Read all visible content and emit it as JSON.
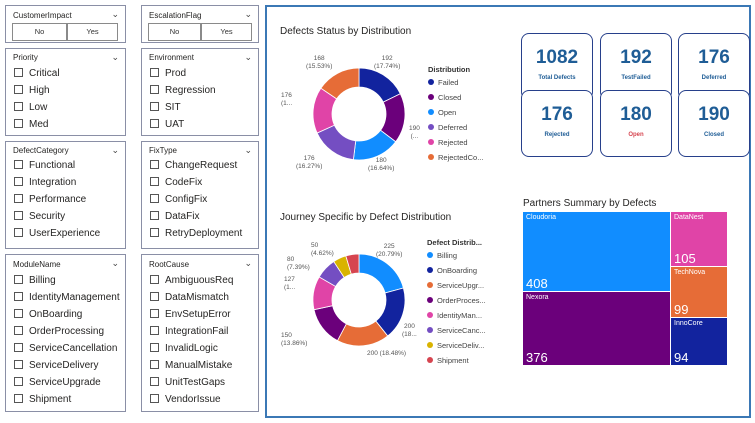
{
  "slicers": {
    "customer_impact": {
      "title": "CustomerImpact",
      "options": [
        "No",
        "Yes"
      ]
    },
    "escalation_flag": {
      "title": "EscalationFlag",
      "options": [
        "No",
        "Yes"
      ]
    },
    "priority": {
      "title": "Priority",
      "items": [
        "Critical",
        "High",
        "Low",
        "Med"
      ]
    },
    "environment": {
      "title": "Environment",
      "items": [
        "Prod",
        "Regression",
        "SIT",
        "UAT"
      ]
    },
    "defect_category": {
      "title": "DefectCategory",
      "items": [
        "Functional",
        "Integration",
        "Performance",
        "Security",
        "UserExperience"
      ]
    },
    "fix_type": {
      "title": "FixType",
      "items": [
        "ChangeRequest",
        "CodeFix",
        "ConfigFix",
        "DataFix",
        "RetryDeployment"
      ]
    },
    "module_name": {
      "title": "ModuleName",
      "items": [
        "Billing",
        "IdentityManagement",
        "OnBoarding",
        "OrderProcessing",
        "ServiceCancellation",
        "ServiceDelivery",
        "ServiceUpgrade",
        "Shipment"
      ]
    },
    "root_cause": {
      "title": "RootCause",
      "items": [
        "AmbiguousReq",
        "DataMismatch",
        "EnvSetupError",
        "IntegrationFail",
        "InvalidLogic",
        "ManualMistake",
        "UnitTestGaps",
        "VendorIssue"
      ]
    }
  },
  "defects_status": {
    "title": "Defects Status by Distribution",
    "legend_title": "Distribution",
    "legend": [
      "Failed",
      "Closed",
      "Open",
      "Deferred",
      "Rejected",
      "RejectedCo..."
    ],
    "labels": [
      {
        "line1": "192",
        "line2": "(17.74%)"
      },
      {
        "line1": "190",
        "line2": "(..."
      },
      {
        "line1": "180",
        "line2": "(16.64%)"
      },
      {
        "line1": "176",
        "line2": "(16.27%)"
      },
      {
        "line1": "176",
        "line2": "(1..."
      },
      {
        "line1": "168",
        "line2": "(15.53%)"
      }
    ]
  },
  "journey": {
    "title": "Journey Specific by Defect Distribution",
    "legend_title": "Defect Distrib...",
    "legend": [
      "Billing",
      "OnBoarding",
      "ServiceUpgr...",
      "OrderProces...",
      "IdentityMan...",
      "ServiceCanc...",
      "ServiceDeliv...",
      "Shipment"
    ],
    "labels": [
      {
        "line1": "225",
        "line2": "(20.79%)"
      },
      {
        "line1": "200",
        "line2": "(18..."
      },
      {
        "line1": "200 (18.48%)",
        "line2": ""
      },
      {
        "line1": "150",
        "line2": "(13.86%)"
      },
      {
        "line1": "127",
        "line2": "(1..."
      },
      {
        "line1": "80",
        "line2": "(7.39%)"
      },
      {
        "line1": "50",
        "line2": "(4.62%)"
      }
    ]
  },
  "cards": [
    {
      "value": "1082",
      "label": "Total Defects",
      "label_color": "#1f5d96"
    },
    {
      "value": "192",
      "label": "TestFailed",
      "label_color": "#1f5d96"
    },
    {
      "value": "176",
      "label": "Deferred",
      "label_color": "#1f5d96"
    },
    {
      "value": "176",
      "label": "Rejected",
      "label_color": "#1f5d96"
    },
    {
      "value": "180",
      "label": "Open",
      "label_color": "#d64550"
    },
    {
      "value": "190",
      "label": "Closed",
      "label_color": "#1f5d96"
    }
  ],
  "partners": {
    "title": "Partners Summary by Defects",
    "tiles": [
      {
        "name": "Cloudoria",
        "value": "408",
        "color": "#118dff"
      },
      {
        "name": "Nexora",
        "value": "376",
        "color": "#6b007b"
      },
      {
        "name": "DataNest",
        "value": "105",
        "color": "#e044a7"
      },
      {
        "name": "TechNova",
        "value": "99",
        "color": "#e66c37"
      },
      {
        "name": "InnoCore",
        "value": "94",
        "color": "#12239e"
      }
    ]
  },
  "chart_data": [
    {
      "type": "pie",
      "title": "Defects Status by Distribution",
      "legend_title": "Distribution",
      "categories": [
        "Failed",
        "Closed",
        "Open",
        "Deferred",
        "Rejected",
        "RejectedCo..."
      ],
      "values": [
        192,
        190,
        180,
        176,
        176,
        168
      ],
      "colors": [
        "#12239e",
        "#6b007b",
        "#118dff",
        "#744ec2",
        "#e044a7",
        "#e66c37"
      ],
      "legend_position": "right"
    },
    {
      "type": "pie",
      "title": "Journey Specific by Defect Distribution",
      "legend_title": "Defect Distrib...",
      "categories": [
        "Billing",
        "OnBoarding",
        "ServiceUpgr...",
        "OrderProces...",
        "IdentityMan...",
        "ServiceCanc...",
        "ServiceDeliv...",
        "Shipment"
      ],
      "values": [
        225,
        200,
        200,
        150,
        127,
        80,
        50,
        50
      ],
      "colors": [
        "#118dff",
        "#12239e",
        "#e66c37",
        "#6b007b",
        "#e044a7",
        "#744ec2",
        "#d9b300",
        "#d64550"
      ],
      "legend_position": "right"
    },
    {
      "type": "treemap",
      "title": "Partners Summary by Defects",
      "categories": [
        "Cloudoria",
        "Nexora",
        "DataNest",
        "TechNova",
        "InnoCore"
      ],
      "values": [
        408,
        376,
        105,
        99,
        94
      ]
    }
  ]
}
